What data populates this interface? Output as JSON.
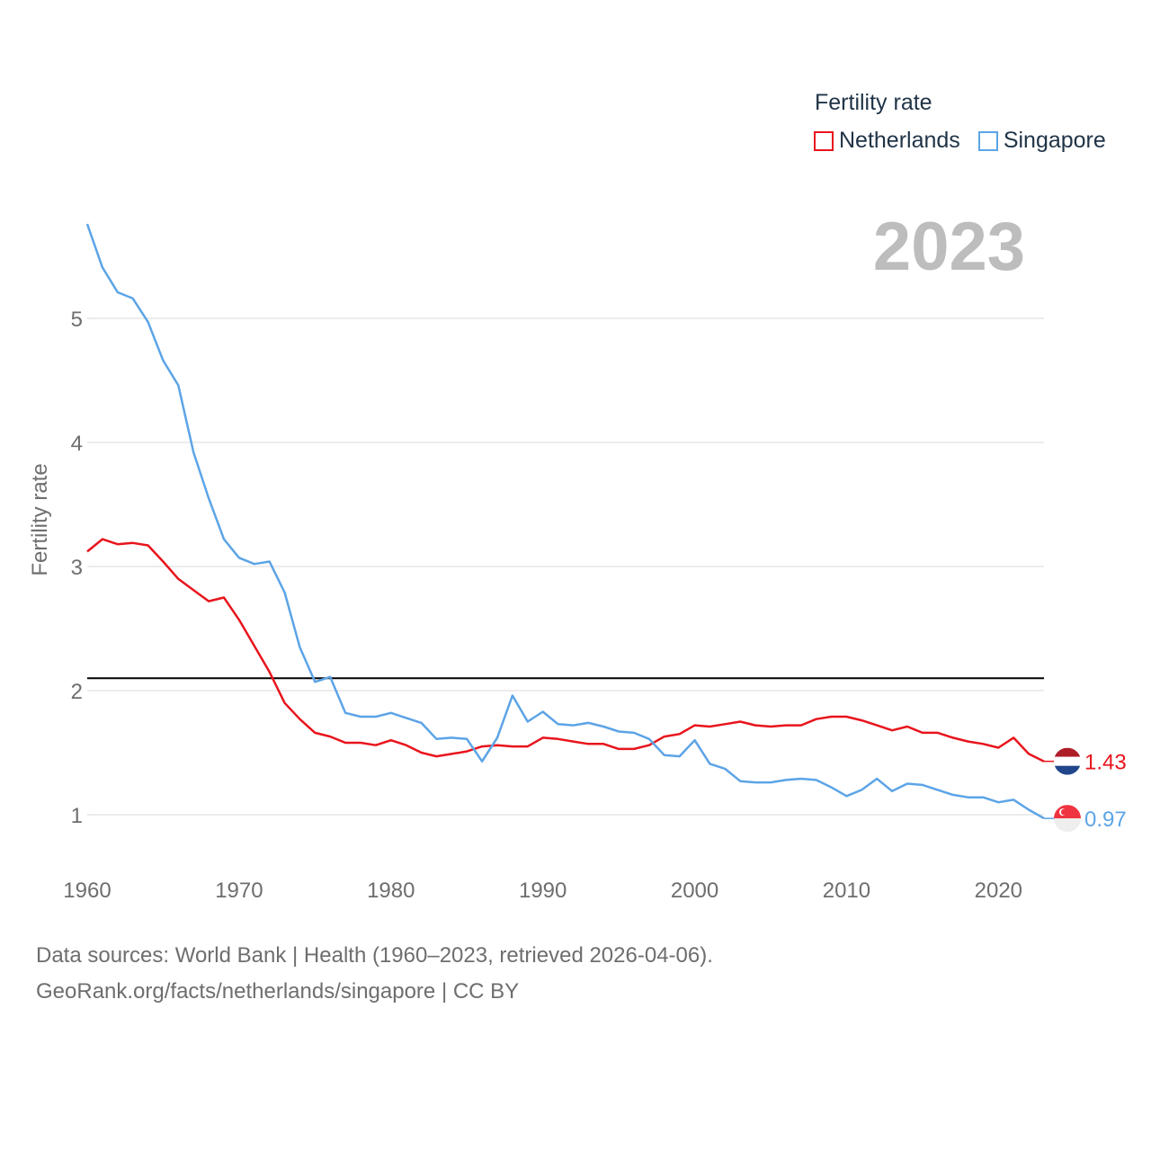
{
  "legend": {
    "title": "Fertility rate",
    "items": [
      {
        "label": "Netherlands",
        "color": "#e8141c"
      },
      {
        "label": "Singapore",
        "color": "#5ca4e6"
      }
    ]
  },
  "year_display": "2023",
  "footer": {
    "line1": "Data sources: World Bank | Health (1960–2023, retrieved 2026-04-06).",
    "line2": "GeoRank.org/facts/netherlands/singapore | CC BY"
  },
  "chart_data": {
    "type": "line",
    "title": "Fertility rate",
    "ylabel": "Fertility rate",
    "xlabel": "",
    "xlim": [
      1960,
      2023
    ],
    "ylim": [
      0.65,
      5.8
    ],
    "x_ticks": [
      1960,
      1970,
      1980,
      1990,
      2000,
      2010,
      2020
    ],
    "y_ticks": [
      1,
      2,
      3,
      4,
      5
    ],
    "reference_line": {
      "y": 2.1,
      "color": "#000000"
    },
    "x": [
      1960,
      1961,
      1962,
      1963,
      1964,
      1965,
      1966,
      1967,
      1968,
      1969,
      1970,
      1971,
      1972,
      1973,
      1974,
      1975,
      1976,
      1977,
      1978,
      1979,
      1980,
      1981,
      1982,
      1983,
      1984,
      1985,
      1986,
      1987,
      1988,
      1989,
      1990,
      1991,
      1992,
      1993,
      1994,
      1995,
      1996,
      1997,
      1998,
      1999,
      2000,
      2001,
      2002,
      2003,
      2004,
      2005,
      2006,
      2007,
      2008,
      2009,
      2010,
      2011,
      2012,
      2013,
      2014,
      2015,
      2016,
      2017,
      2018,
      2019,
      2020,
      2021,
      2022,
      2023
    ],
    "series": [
      {
        "name": "Netherlands",
        "color": "#e8141c",
        "end_label": "1.43",
        "values": [
          3.12,
          3.22,
          3.18,
          3.19,
          3.17,
          3.04,
          2.9,
          2.81,
          2.72,
          2.75,
          2.57,
          2.36,
          2.15,
          1.9,
          1.77,
          1.66,
          1.63,
          1.58,
          1.58,
          1.56,
          1.6,
          1.56,
          1.5,
          1.47,
          1.49,
          1.51,
          1.55,
          1.56,
          1.55,
          1.55,
          1.62,
          1.61,
          1.59,
          1.57,
          1.57,
          1.53,
          1.53,
          1.56,
          1.63,
          1.65,
          1.72,
          1.71,
          1.73,
          1.75,
          1.72,
          1.71,
          1.72,
          1.72,
          1.77,
          1.79,
          1.79,
          1.76,
          1.72,
          1.68,
          1.71,
          1.66,
          1.66,
          1.62,
          1.59,
          1.57,
          1.54,
          1.62,
          1.49,
          1.43
        ]
      },
      {
        "name": "Singapore",
        "color": "#5ca4e6",
        "end_label": "0.97",
        "values": [
          5.76,
          5.41,
          5.21,
          5.16,
          4.97,
          4.66,
          4.46,
          3.92,
          3.55,
          3.22,
          3.07,
          3.02,
          3.04,
          2.79,
          2.35,
          2.07,
          2.11,
          1.82,
          1.79,
          1.79,
          1.82,
          1.78,
          1.74,
          1.61,
          1.62,
          1.61,
          1.43,
          1.62,
          1.96,
          1.75,
          1.83,
          1.73,
          1.72,
          1.74,
          1.71,
          1.67,
          1.66,
          1.61,
          1.48,
          1.47,
          1.6,
          1.41,
          1.37,
          1.27,
          1.26,
          1.26,
          1.28,
          1.29,
          1.28,
          1.22,
          1.15,
          1.2,
          1.29,
          1.19,
          1.25,
          1.24,
          1.2,
          1.16,
          1.14,
          1.14,
          1.1,
          1.12,
          1.04,
          0.97
        ]
      }
    ]
  }
}
